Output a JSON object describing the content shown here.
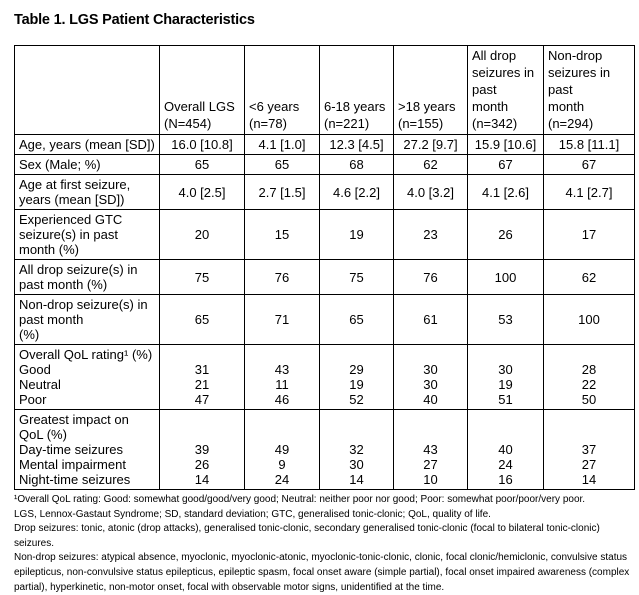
{
  "page_title": "Table 1. LGS Patient Characteristics",
  "table": {
    "header": {
      "corner": "",
      "columns": [
        {
          "lines": [
            "Overall LGS",
            "(N=454)"
          ]
        },
        {
          "lines": [
            "<6 years",
            "(n=78)"
          ]
        },
        {
          "lines": [
            "6-18 years",
            "(n=221)"
          ]
        },
        {
          "lines": [
            ">18 years",
            "(n=155)"
          ]
        },
        {
          "lines": [
            "All drop",
            "seizures in",
            "past",
            "month",
            "(n=342)"
          ]
        },
        {
          "lines": [
            "Non-drop",
            "seizures in",
            "past",
            "month",
            "(n=294)"
          ]
        }
      ]
    },
    "rows": [
      {
        "label_lines": [
          "Age, years (mean [SD])"
        ],
        "values": [
          "16.0 [10.8]",
          "4.1 [1.0]",
          "12.3 [4.5]",
          "27.2 [9.7]",
          "15.9 [10.6]",
          "15.8 [11.1]"
        ]
      },
      {
        "label_lines": [
          "Sex (Male; %)"
        ],
        "values": [
          "65",
          "65",
          "68",
          "62",
          "67",
          "67"
        ]
      },
      {
        "label_lines": [
          "Age at first seizure,",
          "years (mean [SD])"
        ],
        "values": [
          "4.0 [2.5]",
          "2.7 [1.5]",
          "4.6 [2.2]",
          "4.0 [3.2]",
          "4.1 [2.6]",
          "4.1 [2.7]"
        ]
      },
      {
        "label_lines": [
          "Experienced GTC",
          "seizure(s) in past",
          "month (%)"
        ],
        "values": [
          "20",
          "15",
          "19",
          "23",
          "26",
          "17"
        ]
      },
      {
        "label_lines": [
          "All drop seizure(s) in",
          "past month (%)"
        ],
        "values": [
          "75",
          "76",
          "75",
          "76",
          "100",
          "62"
        ]
      },
      {
        "label_lines": [
          "Non-drop seizure(s) in",
          "past month",
          "(%)"
        ],
        "values": [
          "65",
          "71",
          "65",
          "61",
          "53",
          "100"
        ]
      },
      {
        "group_lines": [
          "Overall QoL rating¹ (%)"
        ],
        "subrows": [
          {
            "label": "Good",
            "values": [
              "31",
              "43",
              "29",
              "30",
              "30",
              "28"
            ]
          },
          {
            "label": "Neutral",
            "values": [
              "21",
              "11",
              "19",
              "30",
              "19",
              "22"
            ]
          },
          {
            "label": "Poor",
            "values": [
              "47",
              "46",
              "52",
              "40",
              "51",
              "50"
            ]
          }
        ]
      },
      {
        "group_lines": [
          "Greatest impact on",
          "QoL (%)"
        ],
        "subrows": [
          {
            "label": "Day-time seizures",
            "values": [
              "39",
              "49",
              "32",
              "43",
              "40",
              "37"
            ]
          },
          {
            "label": "Mental impairment",
            "values": [
              "26",
              "9",
              "30",
              "27",
              "24",
              "27"
            ]
          },
          {
            "label": "Night-time seizures",
            "values": [
              "14",
              "24",
              "14",
              "10",
              "16",
              "14"
            ]
          }
        ]
      }
    ]
  },
  "footnotes": [
    "¹Overall QoL rating: Good: somewhat good/good/very good; Neutral: neither poor nor good; Poor: somewhat poor/poor/very poor.",
    "LGS, Lennox-Gastaut Syndrome; SD, standard deviation; GTC, generalised tonic-clonic; QoL, quality of life.",
    "Drop seizures: tonic, atonic (drop attacks), generalised tonic-clonic, secondary generalised tonic-clonic (focal to bilateral tonic-clonic) seizures.",
    "Non-drop seizures: atypical absence, myoclonic, myoclonic-atonic, myoclonic-tonic-clonic, clonic, focal clonic/hemiclonic, convulsive status epilepticus, non-convulsive status epilepticus, epileptic spasm, focal onset aware (simple partial), focal onset impaired awareness (complex partial), hyperkinetic, non-motor onset, focal with observable motor signs, unidentified at the time."
  ]
}
